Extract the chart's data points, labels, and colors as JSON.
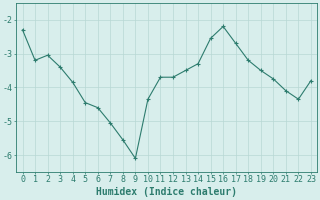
{
  "x": [
    0,
    1,
    2,
    3,
    4,
    5,
    6,
    7,
    8,
    9,
    10,
    11,
    12,
    13,
    14,
    15,
    16,
    17,
    18,
    19,
    20,
    21,
    22,
    23
  ],
  "y": [
    -2.3,
    -3.2,
    -3.05,
    -3.4,
    -3.85,
    -4.45,
    -4.6,
    -5.05,
    -5.55,
    -6.1,
    -4.35,
    -3.7,
    -3.7,
    -3.5,
    -3.3,
    -2.55,
    -2.2,
    -2.7,
    -3.2,
    -3.5,
    -3.75,
    -4.1,
    -4.35,
    -3.8
  ],
  "line_color": "#2d7c6e",
  "marker": "P",
  "marker_size": 2.5,
  "bg_color": "#d8eeec",
  "grid_color": "#b8d8d4",
  "xlabel": "Humidex (Indice chaleur)",
  "xlim": [
    -0.5,
    23.5
  ],
  "ylim": [
    -6.5,
    -1.5
  ],
  "yticks": [
    -6,
    -5,
    -4,
    -3,
    -2
  ],
  "xticks": [
    0,
    1,
    2,
    3,
    4,
    5,
    6,
    7,
    8,
    9,
    10,
    11,
    12,
    13,
    14,
    15,
    16,
    17,
    18,
    19,
    20,
    21,
    22,
    23
  ],
  "tick_color": "#2d7c6e",
  "xlabel_fontsize": 7,
  "tick_fontsize": 6
}
